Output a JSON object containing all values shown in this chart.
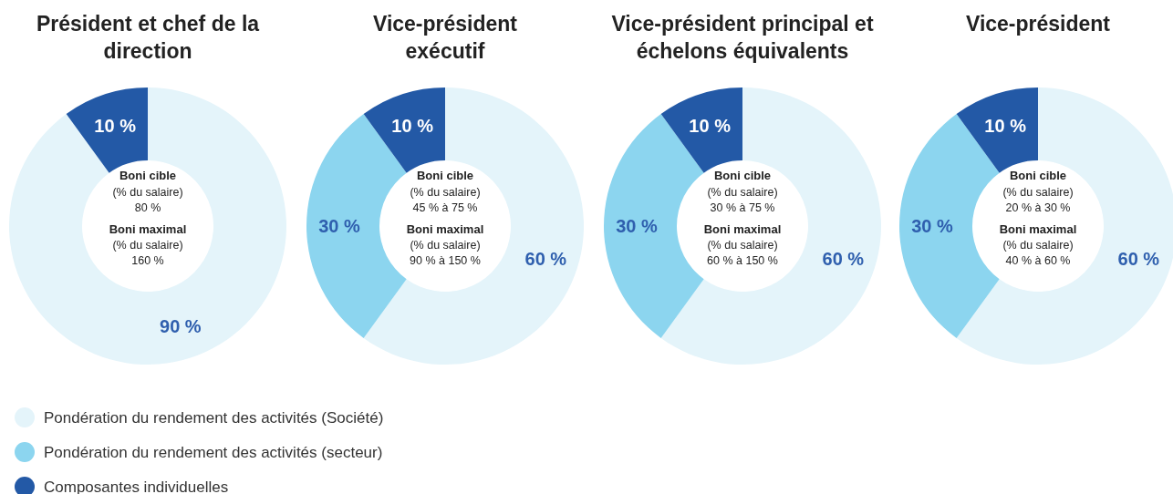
{
  "chart_data": [
    {
      "type": "donut",
      "title": "Président et chef de la\ndirection",
      "categories": [
        null,
        null
      ],
      "values": [
        90,
        10
      ],
      "colors": [
        "#e4f4fa",
        "#2359a6"
      ],
      "value_labels": [
        "90 %",
        "10 %"
      ],
      "annotations": [
        "Boni cible",
        "(% du salaire)",
        "80 %",
        "Boni maximal",
        "(% du salaire)",
        "160 %"
      ]
    },
    {
      "type": "donut",
      "title": "Vice-président\nexécutif",
      "categories": [
        "Pondération du rendement des activités (Société)",
        "Pondération du rendement des activités (secteur)",
        "Composantes individuelles"
      ],
      "values": [
        60,
        30,
        10
      ],
      "colors": [
        "#e4f4fa",
        "#8cd5ef",
        "#2359a6"
      ],
      "value_labels": [
        "60 %",
        "30 %",
        "10 %"
      ],
      "legend": "bottom",
      "annotations": [
        "Boni cible",
        "(% du salaire)",
        "45 % à 75 %",
        "Boni maximal",
        "(% du salaire)",
        "90 % à 150 %"
      ]
    },
    {
      "type": "donut",
      "title": "Vice-président principal et\néchelons équivalents",
      "categories": [
        null,
        null,
        null
      ],
      "values": [
        60,
        30,
        10
      ],
      "colors": [
        "#e4f4fa",
        "#8cd5ef",
        "#2359a6"
      ],
      "value_labels": [
        "60 %",
        "30 %",
        "10 %"
      ],
      "annotations": [
        "Boni cible",
        "(% du salaire)",
        "30 % à 75 %",
        "Boni maximal",
        "(% du salaire)",
        "60 % à 150 %"
      ]
    },
    {
      "type": "donut",
      "title": "Vice-président",
      "categories": [
        null,
        null,
        null
      ],
      "values": [
        60,
        30,
        10
      ],
      "colors": [
        "#e4f4fa",
        "#8cd5ef",
        "#2359a6"
      ],
      "value_labels": [
        "60 %",
        "30 %",
        "10 %"
      ],
      "annotations": [
        "Boni cible",
        "(% du salaire)",
        "20 % à 30 %",
        "Boni maximal",
        "(% du salaire)",
        "40 % à 60 %"
      ]
    }
  ]
}
